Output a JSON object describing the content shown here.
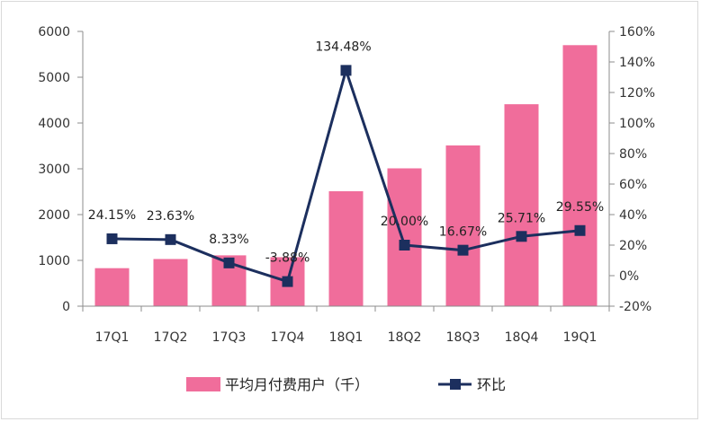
{
  "chart_data": {
    "type": "bar",
    "categories": [
      "17Q1",
      "17Q2",
      "17Q3",
      "17Q4",
      "18Q1",
      "18Q2",
      "18Q3",
      "18Q4",
      "19Q1"
    ],
    "series": [
      {
        "name": "平均月付费用户（千）",
        "type": "bar",
        "axis": "left",
        "color": "#f06d9b",
        "values": [
          830,
          1030,
          1110,
          1070,
          2510,
          3010,
          3510,
          4410,
          5700
        ]
      },
      {
        "name": "环比",
        "type": "line",
        "axis": "right",
        "color": "#1c2f5e",
        "values": [
          24.15,
          23.63,
          8.33,
          -3.88,
          134.48,
          20.0,
          16.67,
          25.71,
          29.55
        ],
        "labels": [
          "24.15%",
          "23.63%",
          "8.33%",
          "-3.88%",
          "134.48%",
          "20.00%",
          "16.67%",
          "25.71%",
          "29.55%"
        ]
      }
    ],
    "y_left": {
      "min": 0,
      "max": 6000,
      "ticks": [
        "0",
        "1000",
        "2000",
        "3000",
        "4000",
        "5000",
        "6000"
      ]
    },
    "y_right": {
      "min": -20,
      "max": 160,
      "ticks": [
        "-20%",
        "0%",
        "20%",
        "40%",
        "60%",
        "80%",
        "100%",
        "120%",
        "140%",
        "160%"
      ]
    },
    "grid": false,
    "legend": "bottom"
  }
}
